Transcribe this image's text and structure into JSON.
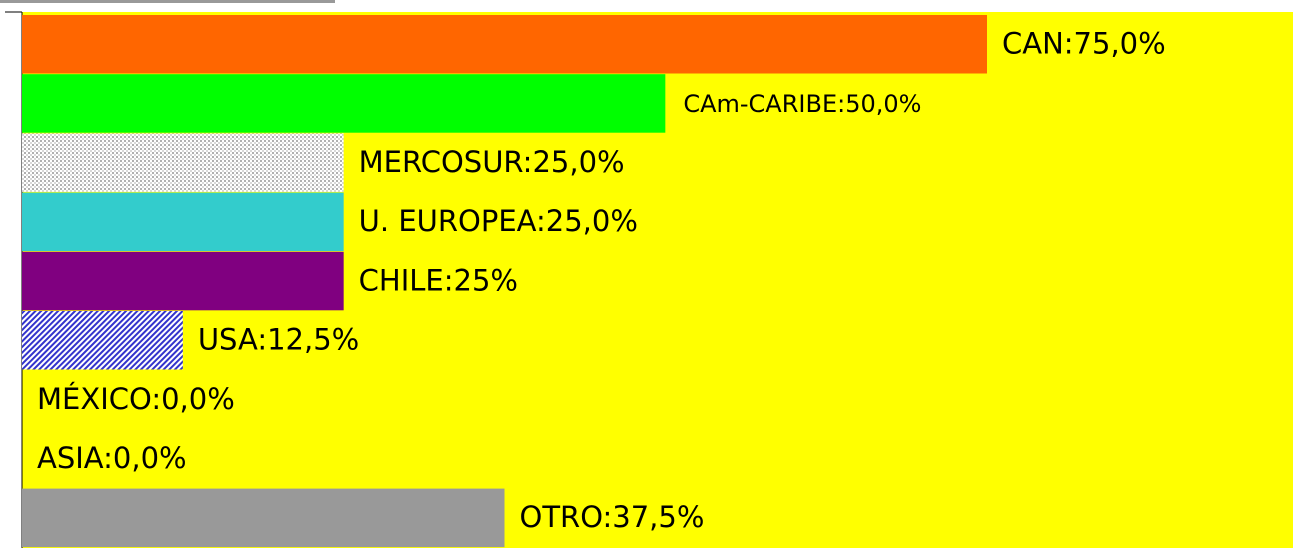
{
  "chart_data": {
    "type": "barh",
    "value_labels": [
      "CAN:75,0%",
      "CAm-CARIBE:50,0%",
      "MERCOSUR:25,0%",
      "U. EUROPEA:25,0%",
      "CHILE:25%",
      "USA:12,5%",
      "MÉXICO:0,0%",
      "ASIA:0,0%",
      "OTRO:37,5%"
    ],
    "values": [
      75,
      50,
      25,
      25,
      25,
      12.5,
      0,
      0,
      37.5
    ],
    "colors": [
      "#ff6600",
      "#00ff00",
      "#c8c8c8",
      "#33cccc",
      "#800080",
      "#3333cc",
      "#999999",
      "#999999",
      "#999999"
    ],
    "patterns": [
      null,
      null,
      "dots",
      null,
      null,
      "diagonal",
      null,
      null,
      null
    ],
    "background": "#ffff00",
    "xlim": [
      0,
      75
    ]
  }
}
